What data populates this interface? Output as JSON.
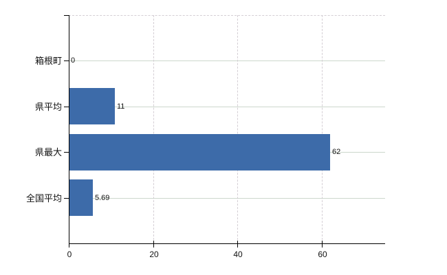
{
  "chart_data": {
    "type": "bar",
    "orientation": "horizontal",
    "categories": [
      "箱根町",
      "県平均",
      "県最大",
      "全国平均"
    ],
    "values": [
      0,
      11,
      62,
      5.69
    ],
    "value_labels": [
      "0",
      "11",
      "62",
      "5.69"
    ],
    "title": "",
    "xlabel": "",
    "ylabel": "",
    "xlim": [
      0,
      75
    ],
    "x_ticks": [
      0,
      20,
      40,
      60
    ],
    "x_tick_labels": [
      "0",
      "20",
      "40",
      "60"
    ],
    "grid": {
      "vertical": "dashed",
      "horizontal": "solid",
      "top_border": "dashed"
    },
    "legend": "none",
    "colors": {
      "bar": "#3d6ba9",
      "axis": "#000000",
      "grid_vertical": "#d4ced4",
      "grid_horizontal": "#ccd7cc",
      "text": "#111111",
      "background": "#ffffff"
    }
  }
}
